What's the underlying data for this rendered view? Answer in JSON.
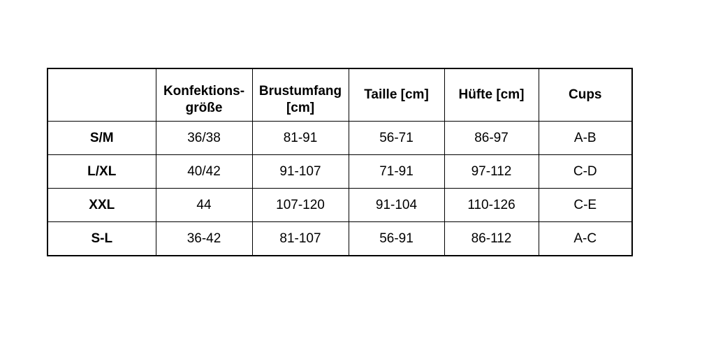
{
  "table": {
    "headers": [
      "",
      "Konfektions-\ngröße",
      "Brustumfang\n[cm]",
      "Taille [cm]",
      "Hüfte [cm]",
      "Cups"
    ],
    "rows": [
      [
        "S/M",
        "36/38",
        "81-91",
        "56-71",
        "86-97",
        "A-B"
      ],
      [
        "L/XL",
        "40/42",
        "91-107",
        "71-91",
        "97-112",
        "C-D"
      ],
      [
        "XXL",
        "44",
        "107-120",
        "91-104",
        "110-126",
        "C-E"
      ],
      [
        "S-L",
        "36-42",
        "81-107",
        "56-91",
        "86-112",
        "A-C"
      ]
    ]
  }
}
